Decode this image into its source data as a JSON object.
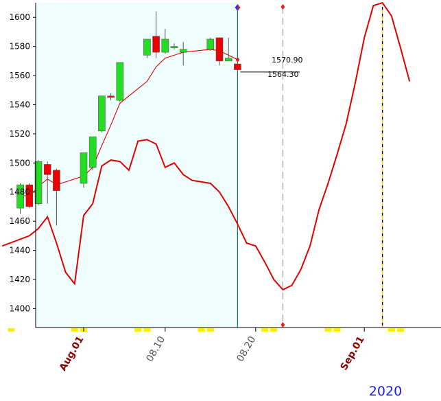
{
  "chart_data": {
    "type": "candlestick",
    "yticks": [
      1400,
      1420,
      1440,
      1460,
      1480,
      1500,
      1520,
      1540,
      1560,
      1580,
      1600
    ],
    "ylim": [
      1387,
      1610
    ],
    "x_tick_labels": [
      {
        "label": "Aug.01",
        "day": 0,
        "color": "#8b0000"
      },
      {
        "label": "08.10",
        "day": 9,
        "color": "#555555"
      },
      {
        "label": "08.20",
        "day": 19,
        "color": "#555555"
      },
      {
        "label": "Sep.01",
        "day": 31,
        "color": "#8b0000"
      }
    ],
    "year_label": "2020",
    "price_labels": {
      "upper": "1570.90",
      "lower": "1564.30"
    },
    "candles": [
      {
        "day": -7,
        "open": 1469,
        "high": 1486,
        "low": 1465,
        "close": 1485
      },
      {
        "day": -6,
        "open": 1485,
        "high": 1486,
        "low": 1469,
        "close": 1470
      },
      {
        "day": -5,
        "open": 1472,
        "high": 1502,
        "low": 1471,
        "close": 1501
      },
      {
        "day": -4,
        "open": 1499,
        "high": 1501,
        "low": 1472,
        "close": 1492
      },
      {
        "day": -3,
        "open": 1495,
        "high": 1496,
        "low": 1457,
        "close": 1481
      },
      {
        "day": 0,
        "open": 1486,
        "high": 1507,
        "low": 1483,
        "close": 1507
      },
      {
        "day": 1,
        "open": 1497,
        "high": 1518,
        "low": 1495,
        "close": 1518
      },
      {
        "day": 2,
        "open": 1522,
        "high": 1546,
        "low": 1521,
        "close": 1546
      },
      {
        "day": 3,
        "open": 1546,
        "high": 1548,
        "low": 1543,
        "close": 1545
      },
      {
        "day": 4,
        "open": 1543,
        "high": 1569,
        "low": 1542,
        "close": 1569
      },
      {
        "day": 7,
        "open": 1574,
        "high": 1585,
        "low": 1572,
        "close": 1585
      },
      {
        "day": 8,
        "open": 1587,
        "high": 1604,
        "low": 1572,
        "close": 1576
      },
      {
        "day": 9,
        "open": 1576,
        "high": 1592,
        "low": 1575,
        "close": 1585
      },
      {
        "day": 10,
        "open": 1580,
        "high": 1582,
        "low": 1578,
        "close": 1580
      },
      {
        "day": 11,
        "open": 1576,
        "high": 1583,
        "low": 1567,
        "close": 1578
      },
      {
        "day": 14,
        "open": 1578,
        "high": 1586,
        "low": 1577,
        "close": 1585
      },
      {
        "day": 15,
        "open": 1586,
        "high": 1586,
        "low": 1567,
        "close": 1570
      },
      {
        "day": 16,
        "open": 1570,
        "high": 1586,
        "low": 1570,
        "close": 1572
      },
      {
        "day": 17,
        "open": 1568,
        "high": 1569,
        "low": 1560,
        "close": 1564
      }
    ],
    "series": [
      {
        "color": "#e00000",
        "points": [
          [
            -7,
            1478
          ],
          [
            -6,
            1477
          ],
          [
            -5,
            1484
          ],
          [
            -4,
            1489
          ],
          [
            -3,
            1485
          ],
          [
            0,
            1491
          ],
          [
            1,
            1497
          ],
          [
            2,
            1512
          ],
          [
            3,
            1526
          ],
          [
            4,
            1541
          ],
          [
            7,
            1556
          ],
          [
            8,
            1566
          ],
          [
            9,
            1572
          ],
          [
            10,
            1574
          ],
          [
            11,
            1576
          ],
          [
            14,
            1578
          ],
          [
            15,
            1577
          ],
          [
            16,
            1574
          ],
          [
            17,
            1570.9
          ]
        ]
      },
      {
        "color": "#e00000",
        "points": [
          [
            -9,
            1443
          ],
          [
            -6,
            1450
          ],
          [
            -5,
            1455
          ],
          [
            -4,
            1463
          ],
          [
            -3,
            1445
          ],
          [
            -2,
            1425
          ],
          [
            -1,
            1417
          ],
          [
            0,
            1464
          ],
          [
            1,
            1472
          ],
          [
            2,
            1498
          ],
          [
            3,
            1502
          ],
          [
            4,
            1501
          ],
          [
            5,
            1495
          ],
          [
            6,
            1515
          ],
          [
            7,
            1516
          ],
          [
            8,
            1513
          ],
          [
            9,
            1497
          ],
          [
            10,
            1500
          ],
          [
            11,
            1492
          ],
          [
            12,
            1488
          ],
          [
            13,
            1487
          ],
          [
            14,
            1486
          ],
          [
            15,
            1480
          ],
          [
            16,
            1470
          ],
          [
            17,
            1458
          ],
          [
            18,
            1445
          ],
          [
            19,
            1443
          ],
          [
            20,
            1432
          ],
          [
            21,
            1420
          ],
          [
            22,
            1413
          ],
          [
            23,
            1416
          ],
          [
            24,
            1427
          ],
          [
            25,
            1443
          ],
          [
            26,
            1468
          ],
          [
            27,
            1486
          ],
          [
            28,
            1506
          ],
          [
            29,
            1527
          ],
          [
            30,
            1555
          ],
          [
            31,
            1586
          ],
          [
            32,
            1608
          ],
          [
            33,
            1610
          ],
          [
            34,
            1601
          ],
          [
            35,
            1579
          ],
          [
            36,
            1556
          ]
        ]
      }
    ],
    "highlight_x_range": [
      -9,
      17
    ],
    "vertical_markers": [
      {
        "day": 17,
        "style": "solid",
        "color": "#1b6e6e"
      },
      {
        "day": 22,
        "style": "dashed",
        "color": "#aaaaaa"
      },
      {
        "day": 33,
        "style": "dashed",
        "color": "#000033"
      }
    ],
    "colors": {
      "up": "#22dd22",
      "down": "#ee0000",
      "highlight": "#effdfd",
      "axis": "#000000"
    }
  }
}
